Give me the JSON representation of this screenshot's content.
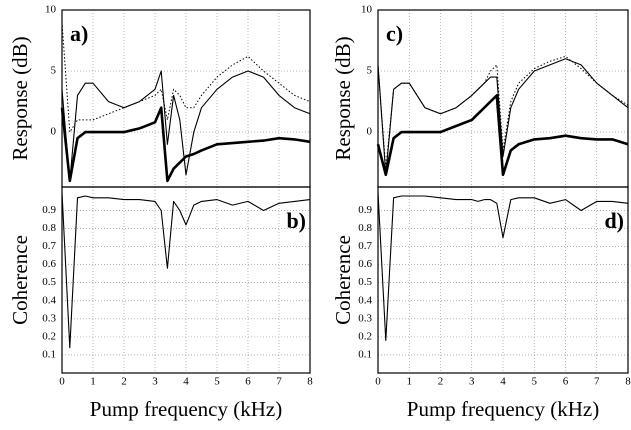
{
  "chart_data": [
    {
      "type": "line",
      "annotation": "a)",
      "annotation_position": "top-left",
      "ylabel": "Response (dB)",
      "xlim": [
        0,
        8
      ],
      "xticks": [
        0,
        1,
        2,
        3,
        4,
        5,
        6,
        7,
        8
      ],
      "xtick_labels": false,
      "ylim": [
        -4.5,
        10
      ],
      "yticks": [
        0,
        5,
        10
      ],
      "grid": true,
      "x": [
        0,
        0.25,
        0.5,
        0.75,
        1,
        1.5,
        2,
        2.5,
        3,
        3.2,
        3.4,
        3.6,
        3.8,
        4,
        4.25,
        4.5,
        5,
        5.5,
        6,
        6.5,
        7,
        7.5,
        8
      ],
      "series": [
        {
          "style": "thick",
          "color": "#000000",
          "values": [
            2,
            -4,
            -0.5,
            0,
            0,
            0,
            0,
            0.3,
            0.8,
            2,
            -4,
            -3,
            -2.5,
            -2,
            -1.8,
            -1.5,
            -1,
            -0.9,
            -0.8,
            -0.7,
            -0.5,
            -0.6,
            -0.8
          ]
        },
        {
          "style": "thin",
          "color": "#000000",
          "values": [
            3.5,
            -4,
            3,
            4,
            4,
            2.5,
            2,
            2.5,
            3.5,
            5,
            -1,
            3,
            1,
            -3.5,
            0,
            2,
            3.5,
            4.5,
            5,
            4.5,
            3,
            2,
            1.5
          ]
        },
        {
          "style": "dotted",
          "color": "#000000",
          "values": [
            9,
            0,
            1,
            1,
            1,
            1.5,
            2,
            2.5,
            3,
            3.5,
            1,
            3.5,
            3,
            2,
            2,
            3,
            4.5,
            5.5,
            6.2,
            5,
            4,
            3,
            2.5
          ]
        }
      ]
    },
    {
      "type": "line",
      "annotation": "b)",
      "annotation_position": "top-right",
      "ylabel": "Coherence",
      "xlabel": "Pump frequency (kHz)",
      "xlim": [
        0,
        8
      ],
      "xticks": [
        0,
        1,
        2,
        3,
        4,
        5,
        6,
        7,
        8
      ],
      "xtick_labels": true,
      "ylim": [
        0,
        1.03
      ],
      "yticks": [
        0.1,
        0.2,
        0.3,
        0.4,
        0.5,
        0.6,
        0.7,
        0.8,
        0.9
      ],
      "grid": true,
      "x": [
        0,
        0.25,
        0.5,
        0.75,
        1,
        1.5,
        2,
        2.5,
        3,
        3.2,
        3.4,
        3.6,
        3.8,
        4,
        4.25,
        4.5,
        5,
        5.5,
        6,
        6.5,
        7,
        7.5,
        8
      ],
      "series": [
        {
          "style": "thin",
          "color": "#000000",
          "values": [
            1.0,
            0.14,
            0.97,
            0.98,
            0.97,
            0.97,
            0.96,
            0.96,
            0.95,
            0.9,
            0.58,
            0.95,
            0.9,
            0.82,
            0.93,
            0.95,
            0.96,
            0.93,
            0.95,
            0.9,
            0.94,
            0.95,
            0.96
          ]
        }
      ]
    },
    {
      "type": "line",
      "annotation": "c)",
      "annotation_position": "top-left",
      "ylabel": "Response (dB)",
      "xlim": [
        0,
        8
      ],
      "xticks": [
        0,
        1,
        2,
        3,
        4,
        5,
        6,
        7,
        8
      ],
      "xtick_labels": false,
      "ylim": [
        -4.5,
        10
      ],
      "yticks": [
        0,
        5,
        10
      ],
      "grid": true,
      "x": [
        0,
        0.25,
        0.5,
        0.75,
        1,
        1.5,
        2,
        2.5,
        3,
        3.2,
        3.4,
        3.6,
        3.8,
        4,
        4.25,
        4.5,
        5,
        5.5,
        6,
        6.5,
        7,
        7.5,
        8
      ],
      "series": [
        {
          "style": "thick",
          "color": "#000000",
          "values": [
            -1,
            -3.5,
            -0.5,
            0,
            0,
            0,
            0,
            0.5,
            1,
            1.5,
            2,
            2.5,
            3,
            -3.5,
            -1.5,
            -1,
            -0.6,
            -0.5,
            -0.3,
            -0.5,
            -0.6,
            -0.6,
            -1
          ]
        },
        {
          "style": "thin",
          "color": "#000000",
          "values": [
            5.5,
            -3.5,
            3.5,
            4,
            4,
            2,
            1.5,
            2,
            3,
            3.5,
            4,
            4.5,
            4.5,
            -2,
            2,
            3.5,
            5,
            5.5,
            6,
            5.5,
            4,
            3,
            2
          ]
        },
        {
          "style": "dotted",
          "color": "#000000",
          "values": [
            5.5,
            -3,
            3.5,
            4,
            4,
            2,
            1.5,
            2,
            3,
            3.5,
            4,
            5,
            5.5,
            -1.5,
            2.5,
            4,
            5.2,
            5.8,
            6.2,
            5.2,
            4,
            3,
            2.2
          ]
        }
      ]
    },
    {
      "type": "line",
      "annotation": "d)",
      "annotation_position": "top-right",
      "ylabel": "Coherence",
      "xlabel": "Pump frequency (kHz)",
      "xlim": [
        0,
        8
      ],
      "xticks": [
        0,
        1,
        2,
        3,
        4,
        5,
        6,
        7,
        8
      ],
      "xtick_labels": true,
      "ylim": [
        0,
        1.03
      ],
      "yticks": [
        0.1,
        0.2,
        0.3,
        0.4,
        0.5,
        0.6,
        0.7,
        0.8,
        0.9
      ],
      "grid": true,
      "x": [
        0,
        0.25,
        0.5,
        0.75,
        1,
        1.5,
        2,
        2.5,
        3,
        3.2,
        3.4,
        3.6,
        3.8,
        4,
        4.25,
        4.5,
        5,
        5.5,
        6,
        6.5,
        7,
        7.5,
        8
      ],
      "series": [
        {
          "style": "thin",
          "color": "#000000",
          "values": [
            1.0,
            0.18,
            0.97,
            0.98,
            0.98,
            0.98,
            0.97,
            0.96,
            0.96,
            0.95,
            0.96,
            0.96,
            0.94,
            0.75,
            0.96,
            0.97,
            0.97,
            0.94,
            0.96,
            0.9,
            0.95,
            0.95,
            0.94
          ]
        }
      ]
    }
  ]
}
